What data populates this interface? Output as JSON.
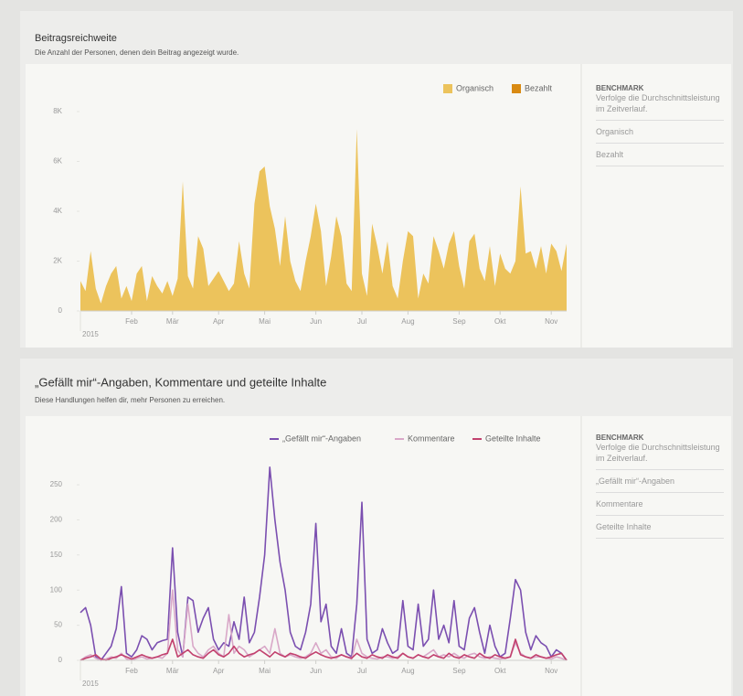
{
  "chart_data": [
    {
      "type": "area",
      "title": "Beitragsreichweite",
      "subtitle": "Die Anzahl der Personen, denen dein Beitrag angezeigt wurde.",
      "year": "2015",
      "categories": [
        null,
        null,
        null,
        null,
        null,
        null,
        null,
        null,
        null,
        null,
        "Feb",
        null,
        null,
        null,
        null,
        null,
        null,
        null,
        "Mär",
        null,
        null,
        null,
        null,
        null,
        null,
        null,
        null,
        "Apr",
        null,
        null,
        null,
        null,
        null,
        null,
        null,
        null,
        "Mai",
        null,
        null,
        null,
        null,
        null,
        null,
        null,
        null,
        null,
        "Jun",
        null,
        null,
        null,
        null,
        null,
        null,
        null,
        null,
        "Jul",
        null,
        null,
        null,
        null,
        null,
        null,
        null,
        null,
        "Aug",
        null,
        null,
        null,
        null,
        null,
        null,
        null,
        null,
        null,
        "Sep",
        null,
        null,
        null,
        null,
        null,
        null,
        null,
        "Okt",
        null,
        null,
        null,
        null,
        null,
        null,
        null,
        null,
        null,
        "Nov",
        null,
        null,
        null
      ],
      "series": [
        {
          "name": "Organisch",
          "color": "#ecc35c",
          "values": [
            1200,
            800,
            2400,
            900,
            300,
            1000,
            1500,
            1800,
            500,
            1000,
            400,
            1500,
            1800,
            400,
            1400,
            1000,
            700,
            1200,
            600,
            1300,
            5200,
            1400,
            900,
            3000,
            2500,
            1000,
            1300,
            1600,
            1200,
            800,
            1100,
            2800,
            1500,
            900,
            4300,
            5600,
            5800,
            4200,
            3300,
            1800,
            3800,
            2000,
            1200,
            800,
            2000,
            3000,
            4300,
            3200,
            1000,
            2200,
            3800,
            3000,
            1100,
            800,
            7300,
            1500,
            600,
            3500,
            2600,
            1500,
            2800,
            1000,
            500,
            2000,
            3200,
            3000,
            500,
            1500,
            1100,
            3000,
            2400,
            1700,
            2700,
            3200,
            1800,
            900,
            2800,
            3100,
            1700,
            1200,
            2600,
            1000,
            2300,
            1700,
            1500,
            2000,
            5000,
            2300,
            2400,
            1700,
            2600,
            1500,
            2700,
            2400,
            1600,
            2700
          ]
        },
        {
          "name": "Bezahlt",
          "color": "#d98a12",
          "values": [
            0,
            0,
            0,
            0,
            0,
            0,
            0,
            0,
            0,
            0,
            0,
            0,
            0,
            0,
            0,
            0,
            0,
            0,
            0,
            0,
            0,
            0,
            0,
            0,
            0,
            0,
            0,
            0,
            0,
            0,
            0,
            0,
            0,
            0,
            0,
            0,
            0,
            0,
            0,
            0,
            0,
            0,
            0,
            0,
            0,
            0,
            0,
            0,
            0,
            0,
            0,
            0,
            0,
            0,
            0,
            0,
            0,
            0,
            0,
            0,
            0,
            0,
            0,
            0,
            0,
            0,
            0,
            0,
            0,
            0,
            0,
            0,
            0,
            0,
            0,
            0,
            0,
            0,
            0,
            0,
            0,
            0,
            0,
            0,
            0,
            0,
            0,
            0,
            0,
            0,
            0,
            0,
            0,
            0,
            0,
            0
          ]
        }
      ],
      "ylim": [
        0,
        8000
      ],
      "yticks": [
        0,
        {
          "value": 2000,
          "label": "2K"
        },
        {
          "value": 4000,
          "label": "4K"
        },
        {
          "value": 6000,
          "label": "6K"
        },
        {
          "value": 8000,
          "label": "8K"
        }
      ],
      "legend": "top-right",
      "legend_marker": "square",
      "grid": false
    },
    {
      "type": "line",
      "title": "„Gefällt mir“-Angaben, Kommentare und geteilte Inhalte",
      "subtitle": "Diese Handlungen helfen dir, mehr Personen zu erreichen.",
      "year": "2015",
      "categories": [
        null,
        null,
        null,
        null,
        null,
        null,
        null,
        null,
        null,
        null,
        "Feb",
        null,
        null,
        null,
        null,
        null,
        null,
        null,
        "Mär",
        null,
        null,
        null,
        null,
        null,
        null,
        null,
        null,
        "Apr",
        null,
        null,
        null,
        null,
        null,
        null,
        null,
        null,
        "Mai",
        null,
        null,
        null,
        null,
        null,
        null,
        null,
        null,
        null,
        "Jun",
        null,
        null,
        null,
        null,
        null,
        null,
        null,
        null,
        "Jul",
        null,
        null,
        null,
        null,
        null,
        null,
        null,
        null,
        "Aug",
        null,
        null,
        null,
        null,
        null,
        null,
        null,
        null,
        null,
        "Sep",
        null,
        null,
        null,
        null,
        null,
        null,
        null,
        "Okt",
        null,
        null,
        null,
        null,
        null,
        null,
        null,
        null,
        null,
        "Nov",
        null,
        null,
        null
      ],
      "series": [
        {
          "name": "„Gefällt mir“-Angaben",
          "color": "#7b4fb0",
          "values": [
            68,
            75,
            50,
            5,
            0,
            10,
            20,
            45,
            105,
            10,
            5,
            15,
            35,
            30,
            15,
            25,
            28,
            30,
            160,
            40,
            5,
            90,
            85,
            40,
            60,
            75,
            30,
            15,
            25,
            20,
            55,
            30,
            90,
            25,
            40,
            90,
            150,
            275,
            200,
            140,
            100,
            40,
            20,
            15,
            40,
            80,
            195,
            55,
            80,
            20,
            10,
            45,
            10,
            5,
            80,
            225,
            30,
            10,
            15,
            45,
            25,
            10,
            15,
            85,
            20,
            15,
            80,
            20,
            30,
            100,
            30,
            50,
            25,
            85,
            20,
            15,
            60,
            75,
            40,
            10,
            50,
            20,
            5,
            10,
            60,
            115,
            100,
            40,
            15,
            35,
            25,
            20,
            5,
            15,
            10,
            0
          ]
        },
        {
          "name": "Kommentare",
          "color": "#d9a8c8",
          "values": [
            0,
            5,
            8,
            3,
            0,
            2,
            5,
            3,
            10,
            2,
            0,
            3,
            5,
            2,
            3,
            5,
            3,
            10,
            100,
            15,
            5,
            80,
            20,
            10,
            5,
            15,
            20,
            10,
            5,
            65,
            10,
            20,
            15,
            5,
            10,
            15,
            20,
            10,
            45,
            10,
            5,
            8,
            5,
            3,
            5,
            10,
            25,
            10,
            15,
            5,
            3,
            8,
            5,
            2,
            30,
            10,
            5,
            3,
            2,
            5,
            5,
            3,
            5,
            10,
            5,
            3,
            8,
            5,
            10,
            15,
            5,
            8,
            5,
            10,
            5,
            3,
            8,
            10,
            5,
            3,
            5,
            3,
            2,
            3,
            5,
            25,
            10,
            5,
            3,
            5,
            5,
            3,
            2,
            5,
            3,
            0
          ]
        },
        {
          "name": "Geteilte Inhalte",
          "color": "#c2416e",
          "values": [
            0,
            3,
            5,
            8,
            2,
            0,
            3,
            5,
            8,
            5,
            2,
            5,
            8,
            5,
            3,
            5,
            8,
            10,
            30,
            5,
            10,
            15,
            8,
            5,
            3,
            10,
            15,
            8,
            5,
            10,
            20,
            10,
            5,
            8,
            10,
            15,
            10,
            5,
            12,
            8,
            5,
            10,
            8,
            5,
            3,
            8,
            12,
            8,
            5,
            3,
            5,
            8,
            5,
            3,
            10,
            5,
            3,
            8,
            5,
            3,
            8,
            5,
            3,
            10,
            5,
            3,
            8,
            5,
            3,
            8,
            5,
            3,
            10,
            5,
            3,
            8,
            5,
            3,
            10,
            5,
            3,
            8,
            5,
            3,
            5,
            30,
            8,
            5,
            3,
            8,
            5,
            3,
            5,
            8,
            10,
            0
          ]
        }
      ],
      "ylim": [
        0,
        280
      ],
      "yticks": [
        0,
        50,
        100,
        150,
        200,
        250
      ],
      "legend": "top-right",
      "legend_marker": "line",
      "grid": false
    }
  ],
  "sidebars": [
    {
      "heading": "BENCHMARK",
      "text": "Verfolge die Durchschnittsleistung im Zeitverlauf.",
      "items": [
        "Organisch",
        "Bezahlt"
      ]
    },
    {
      "heading": "BENCHMARK",
      "text": "Verfolge die Durchschnittsleistung im Zeitverlauf.",
      "items": [
        "„Gefällt mir“-Angaben",
        "Kommentare",
        "Geteilte Inhalte"
      ]
    }
  ]
}
